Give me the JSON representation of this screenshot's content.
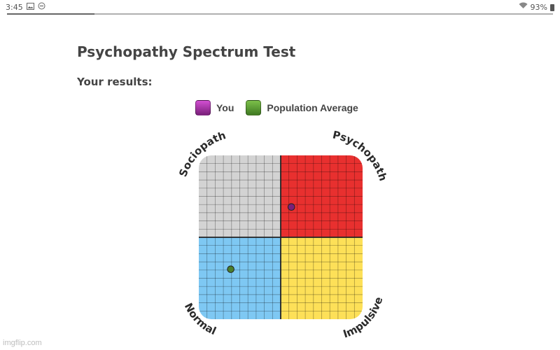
{
  "status_bar": {
    "time": "3:45",
    "left_icons": [
      "image-icon",
      "dnd-icon"
    ],
    "battery_percent": "93%",
    "right_icons": [
      "wifi-icon",
      "battery-icon"
    ]
  },
  "page_progress": 0.16,
  "page": {
    "title": "Psychopathy Spectrum Test",
    "subtitle": "Your results:"
  },
  "legend": [
    {
      "label": "You",
      "color": "#8e2a8e"
    },
    {
      "label": "Population Average",
      "color": "#4e8a2e"
    }
  ],
  "chart_data": {
    "type": "scatter",
    "quadrants": [
      {
        "label": "Sociopath",
        "position": "top-left",
        "color": "#d3d3d3"
      },
      {
        "label": "Psychopath",
        "position": "top-right",
        "color": "#e8302f"
      },
      {
        "label": "Normal",
        "position": "bottom-left",
        "color": "#7ec8f3"
      },
      {
        "label": "Impulsive",
        "position": "bottom-right",
        "color": "#fde058"
      }
    ],
    "grid_divisions": 20,
    "xlim": [
      -10,
      10
    ],
    "ylim": [
      -10,
      10
    ],
    "grid": true,
    "points": [
      {
        "series": "You",
        "x": 1.3,
        "y": 3.7,
        "color": "#7a1f7a"
      },
      {
        "series": "Population Average",
        "x": -6.1,
        "y": -3.9,
        "color": "#4a7f2c"
      }
    ]
  },
  "watermark": "imgflip.com"
}
